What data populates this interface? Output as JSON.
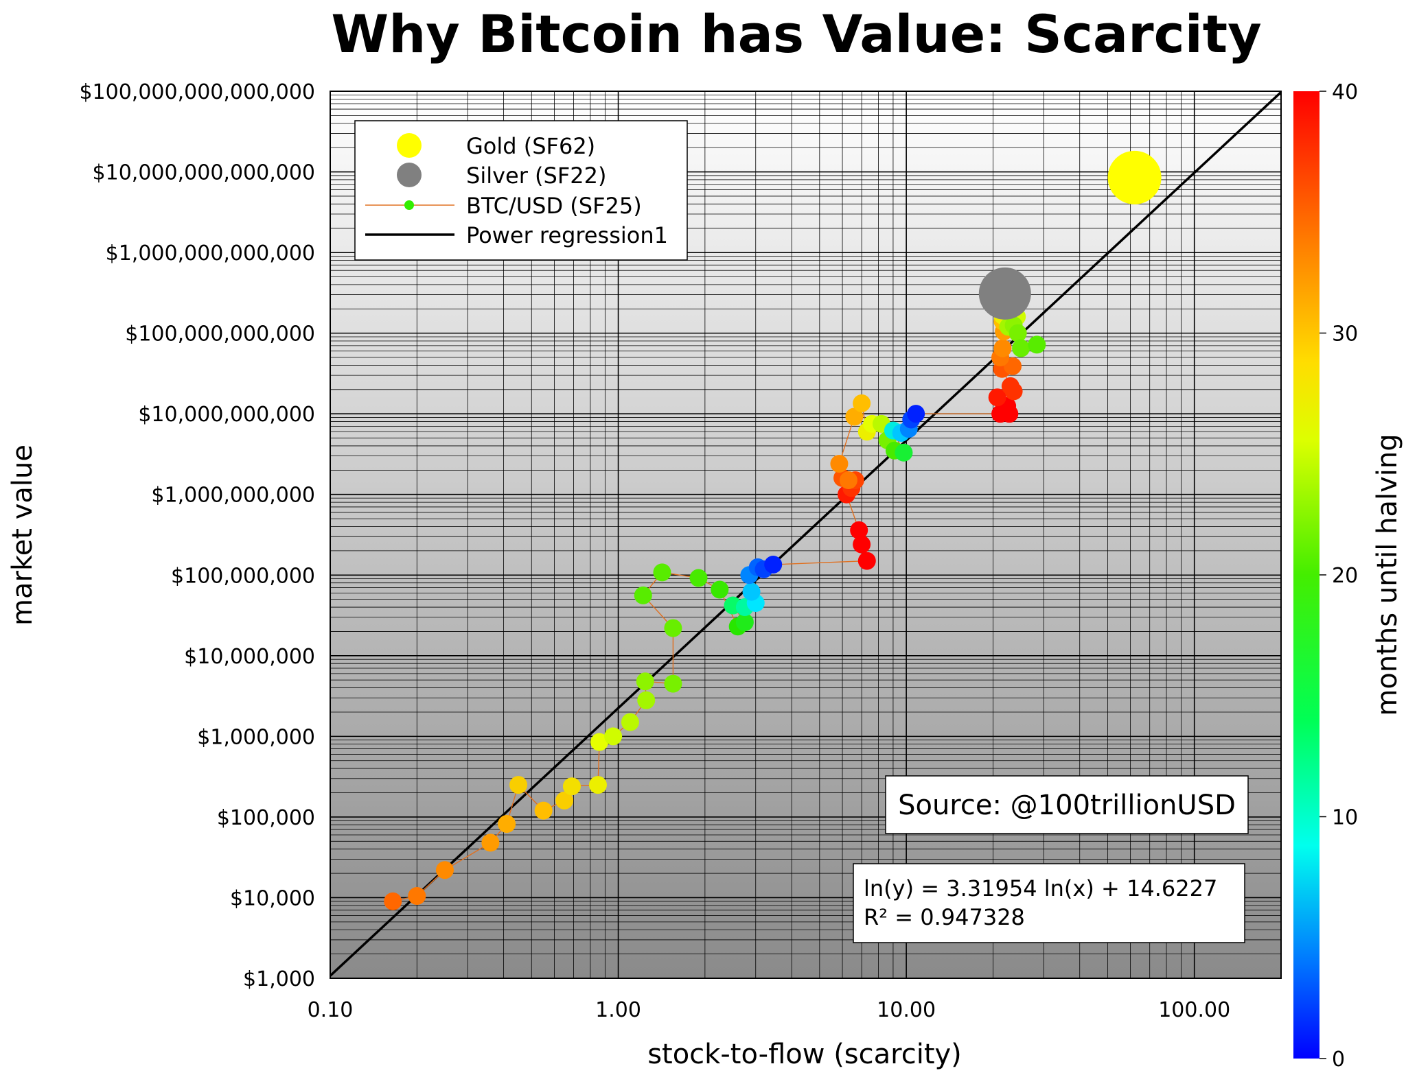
{
  "chart_data": {
    "type": "scatter",
    "title": "Why Bitcoin has Value: Scarcity",
    "xlabel": "stock-to-flow (scarcity)",
    "ylabel": "market value",
    "x_scale": "log",
    "y_scale": "log",
    "xlim": [
      0.1,
      200
    ],
    "ylim": [
      1000,
      100000000000000
    ],
    "x_ticks": [
      0.1,
      1,
      10,
      100
    ],
    "x_tick_labels": [
      "0.10",
      "1.00",
      "10.00",
      "100.00"
    ],
    "y_ticks": [
      1000,
      10000,
      100000,
      1000000,
      10000000,
      100000000,
      1000000000,
      10000000000,
      100000000000,
      1000000000000,
      10000000000000,
      100000000000000
    ],
    "y_tick_labels": [
      "$1,000",
      "$10,000",
      "$100,000",
      "$1,000,000",
      "$10,000,000",
      "$100,000,000",
      "$1,000,000,000",
      "$10,000,000,000",
      "$100,000,000,000",
      "$1,000,000,000,000",
      "$10,000,000,000,000",
      "$100,000,000,000,000"
    ],
    "grid": true,
    "legend_position": "top-left",
    "legend": [
      {
        "label": "Gold (SF62)",
        "marker": "circle",
        "color": "#ffff00"
      },
      {
        "label": "Silver (SF22)",
        "marker": "circle",
        "color": "#808080"
      },
      {
        "label": "BTC/USD (SF25)",
        "marker": "line-dot",
        "color": "#33ee00",
        "line_color": "#e07020"
      },
      {
        "label": "Power regression1",
        "marker": "line",
        "color": "#000000"
      }
    ],
    "colorbar": {
      "label": "months until halving",
      "min": 0,
      "max": 40,
      "ticks": [
        0,
        10,
        20,
        30,
        40
      ],
      "colormap": "jet-reversed: 0 blue, 10 cyan-green, 20 green, 27 yellow, 33 orange, 40 red"
    },
    "series": [
      {
        "name": "Gold (SF62)",
        "x": [
          62
        ],
        "y": [
          8500000000000
        ],
        "color": "#ffff00"
      },
      {
        "name": "Silver (SF22)",
        "x": [
          22
        ],
        "y": [
          310000000000
        ],
        "color": "#808080"
      },
      {
        "name": "BTC/USD (SF25)",
        "line_color": "#e07020",
        "points": [
          {
            "x": 0.165,
            "y": 9000,
            "months": 35
          },
          {
            "x": 0.2,
            "y": 10500,
            "months": 34
          },
          {
            "x": 0.25,
            "y": 22000,
            "months": 33
          },
          {
            "x": 0.36,
            "y": 48000,
            "months": 32
          },
          {
            "x": 0.41,
            "y": 82000,
            "months": 31
          },
          {
            "x": 0.45,
            "y": 250000,
            "months": 29
          },
          {
            "x": 0.55,
            "y": 120000,
            "months": 30
          },
          {
            "x": 0.65,
            "y": 160000,
            "months": 29
          },
          {
            "x": 0.69,
            "y": 240000,
            "months": 28
          },
          {
            "x": 0.85,
            "y": 250000,
            "months": 27
          },
          {
            "x": 0.86,
            "y": 850000,
            "months": 26
          },
          {
            "x": 0.96,
            "y": 1000000,
            "months": 25
          },
          {
            "x": 1.1,
            "y": 1500000,
            "months": 24
          },
          {
            "x": 1.25,
            "y": 2800000,
            "months": 23
          },
          {
            "x": 1.24,
            "y": 4800000,
            "months": 22
          },
          {
            "x": 1.55,
            "y": 4500000,
            "months": 21
          },
          {
            "x": 1.55,
            "y": 22000000,
            "months": 20
          },
          {
            "x": 1.22,
            "y": 56000000,
            "months": 19
          },
          {
            "x": 1.42,
            "y": 108000000,
            "months": 19
          },
          {
            "x": 1.9,
            "y": 92000000,
            "months": 18
          },
          {
            "x": 2.25,
            "y": 66000000,
            "months": 17
          },
          {
            "x": 2.6,
            "y": 23000000,
            "months": 16
          },
          {
            "x": 2.75,
            "y": 26000000,
            "months": 15
          },
          {
            "x": 2.5,
            "y": 42000000,
            "months": 12
          },
          {
            "x": 2.75,
            "y": 40000000,
            "months": 10
          },
          {
            "x": 3.0,
            "y": 45000000,
            "months": 7
          },
          {
            "x": 2.9,
            "y": 62000000,
            "months": 6
          },
          {
            "x": 2.85,
            "y": 100000000,
            "months": 4
          },
          {
            "x": 3.05,
            "y": 125000000,
            "months": 3
          },
          {
            "x": 3.2,
            "y": 118000000,
            "months": 2
          },
          {
            "x": 3.45,
            "y": 135000000,
            "months": 1
          },
          {
            "x": 7.3,
            "y": 150000000,
            "months": 40
          },
          {
            "x": 7.0,
            "y": 240000000,
            "months": 40
          },
          {
            "x": 6.85,
            "y": 360000000,
            "months": 40
          },
          {
            "x": 6.2,
            "y": 1000000000,
            "months": 39
          },
          {
            "x": 6.45,
            "y": 1200000000,
            "months": 38
          },
          {
            "x": 6.65,
            "y": 1500000000,
            "months": 37
          },
          {
            "x": 6.0,
            "y": 1600000000,
            "months": 36
          },
          {
            "x": 6.3,
            "y": 1500000000,
            "months": 34
          },
          {
            "x": 5.85,
            "y": 2400000000,
            "months": 33
          },
          {
            "x": 6.6,
            "y": 9200000000,
            "months": 31
          },
          {
            "x": 7.0,
            "y": 13500000000,
            "months": 30
          },
          {
            "x": 7.3,
            "y": 6000000000,
            "months": 27
          },
          {
            "x": 7.6,
            "y": 7500000000,
            "months": 26
          },
          {
            "x": 8.2,
            "y": 7500000000,
            "months": 24
          },
          {
            "x": 8.6,
            "y": 4700000000,
            "months": 21
          },
          {
            "x": 9.1,
            "y": 3500000000,
            "months": 18
          },
          {
            "x": 9.8,
            "y": 3300000000,
            "months": 14
          },
          {
            "x": 9.0,
            "y": 6200000000,
            "months": 8
          },
          {
            "x": 9.6,
            "y": 5800000000,
            "months": 6
          },
          {
            "x": 10.2,
            "y": 6500000000,
            "months": 4
          },
          {
            "x": 10.4,
            "y": 8500000000,
            "months": 2
          },
          {
            "x": 10.8,
            "y": 10000000000,
            "months": 1
          },
          {
            "x": 21.2,
            "y": 10000000000,
            "months": 40
          },
          {
            "x": 22.8,
            "y": 10000000000,
            "months": 40
          },
          {
            "x": 22.4,
            "y": 12500000000,
            "months": 40
          },
          {
            "x": 20.7,
            "y": 16000000000,
            "months": 39
          },
          {
            "x": 23.6,
            "y": 19000000000,
            "months": 38
          },
          {
            "x": 23.0,
            "y": 22000000000,
            "months": 38
          },
          {
            "x": 21.5,
            "y": 36000000000,
            "months": 36
          },
          {
            "x": 23.4,
            "y": 39000000000,
            "months": 35
          },
          {
            "x": 21.2,
            "y": 50000000000,
            "months": 34
          },
          {
            "x": 21.6,
            "y": 65000000000,
            "months": 33
          },
          {
            "x": 21.8,
            "y": 105000000000,
            "months": 32
          },
          {
            "x": 21.6,
            "y": 140000000000,
            "months": 30
          },
          {
            "x": 21.2,
            "y": 230000000000,
            "months": 29
          },
          {
            "x": 21.6,
            "y": 165000000000,
            "months": 27
          },
          {
            "x": 24.2,
            "y": 160000000000,
            "months": 25
          },
          {
            "x": 22.6,
            "y": 120000000000,
            "months": 23
          },
          {
            "x": 23.6,
            "y": 125000000000,
            "months": 22
          },
          {
            "x": 24.4,
            "y": 100000000000,
            "months": 21
          },
          {
            "x": 25.0,
            "y": 65000000000,
            "months": 20
          },
          {
            "x": 28.4,
            "y": 72000000000,
            "months": 19
          }
        ]
      }
    ],
    "regression": {
      "label": "Power regression1",
      "slope": 3.31954,
      "intercept": 14.6227,
      "equation_text": "ln(y) = 3.31954 ln(x) + 14.6227",
      "r2_text": "R² = 0.947328"
    },
    "annotations": {
      "source": "Source: @100trillionUSD"
    }
  }
}
